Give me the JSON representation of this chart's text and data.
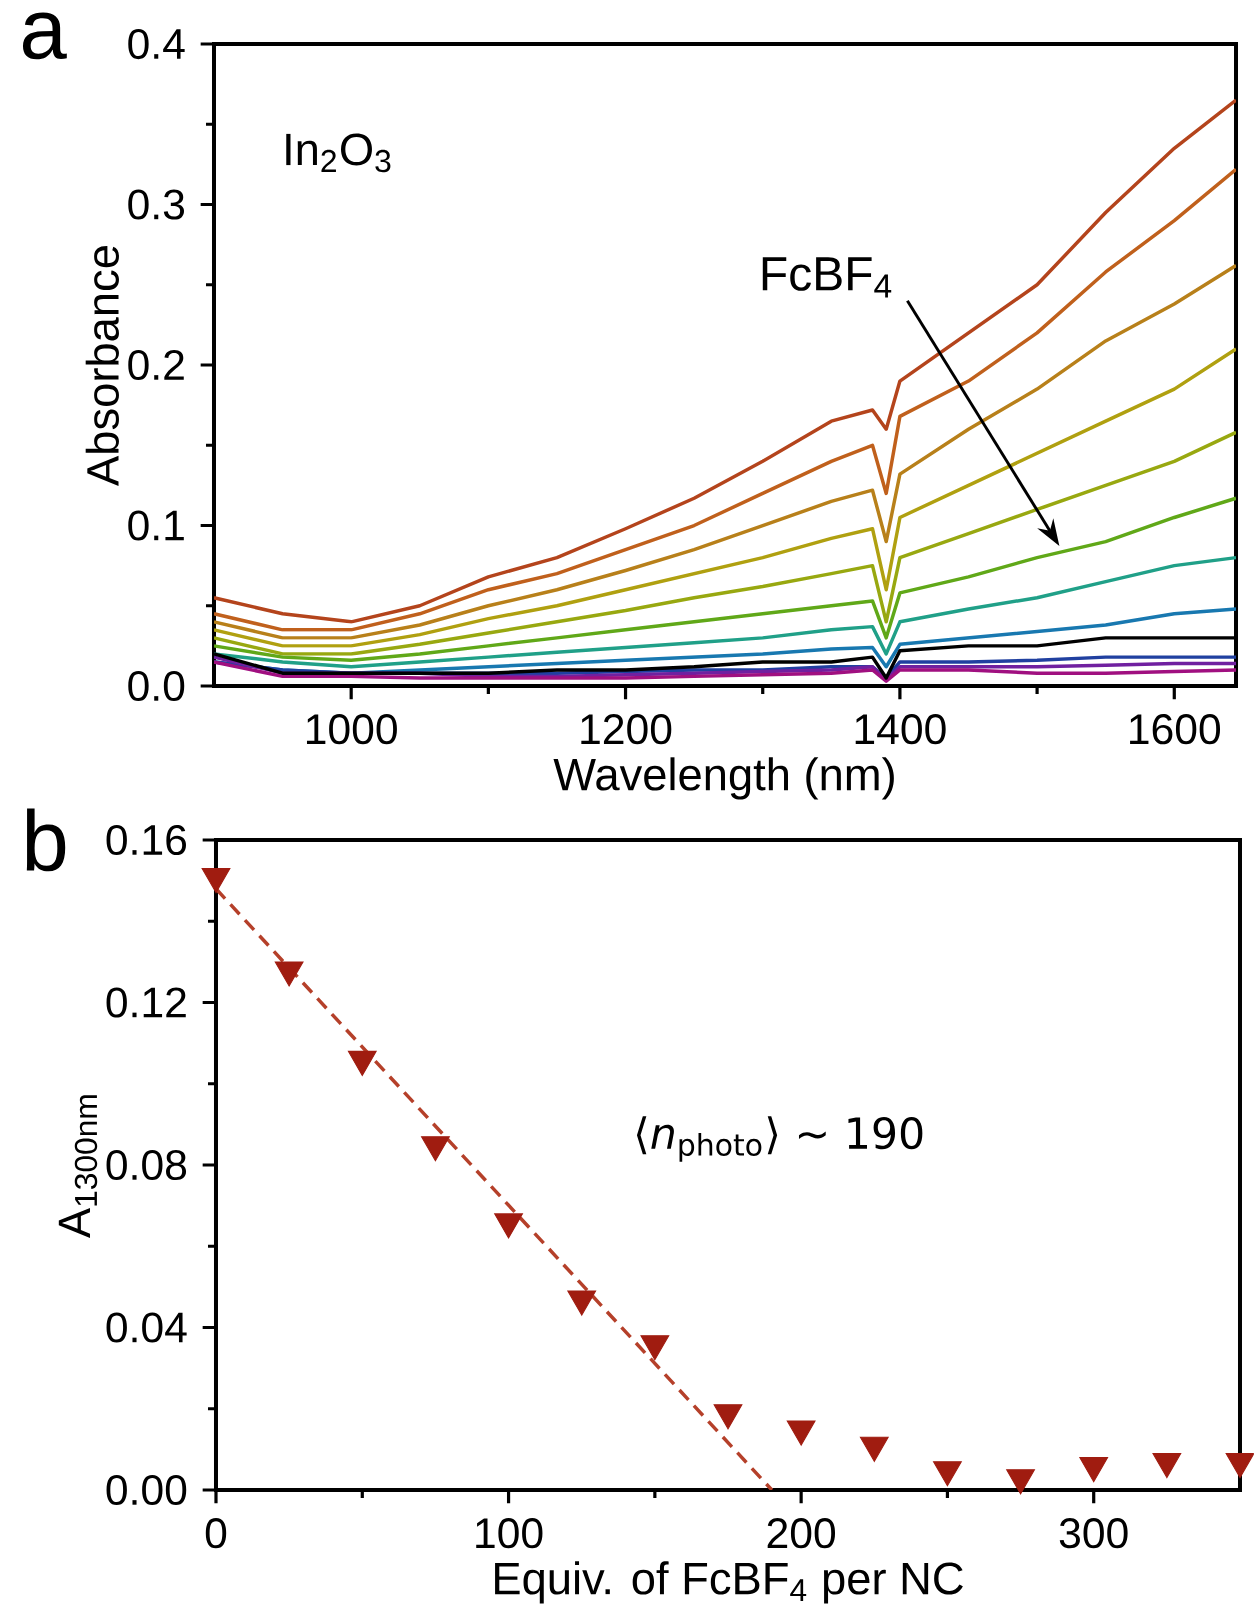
{
  "chart_data": [
    {
      "type": "line",
      "xlabel": "Wavelength (nm)",
      "ylabel": "Absorbance",
      "xlim": [
        900,
        1645
      ],
      "ylim": [
        0,
        0.4
      ],
      "xticks": [
        1000,
        1200,
        1400,
        1600
      ],
      "yticks": [
        {
          "value": 0,
          "label": "0.0"
        },
        {
          "value": 0.1,
          "label": "0.1"
        },
        {
          "value": 0.2,
          "label": "0.2"
        },
        {
          "value": 0.3,
          "label": "0.3"
        },
        {
          "value": 0.4,
          "label": "0.4"
        }
      ],
      "x": [
        900,
        950,
        1000,
        1050,
        1100,
        1150,
        1200,
        1250,
        1300,
        1350,
        1380,
        1390,
        1400,
        1450,
        1500,
        1550,
        1600,
        1645
      ],
      "series": [
        {
          "color": "#b4441c",
          "values": [
            0.055,
            0.045,
            0.04,
            0.05,
            0.068,
            0.08,
            0.098,
            0.117,
            0.14,
            0.165,
            0.172,
            0.16,
            0.19,
            0.22,
            0.25,
            0.295,
            0.335,
            0.365
          ]
        },
        {
          "color": "#c0601c",
          "values": [
            0.045,
            0.035,
            0.035,
            0.045,
            0.06,
            0.07,
            0.085,
            0.1,
            0.12,
            0.14,
            0.15,
            0.12,
            0.168,
            0.19,
            0.22,
            0.258,
            0.29,
            0.322
          ]
        },
        {
          "color": "#b8801a",
          "values": [
            0.04,
            0.03,
            0.03,
            0.038,
            0.05,
            0.06,
            0.072,
            0.085,
            0.1,
            0.115,
            0.122,
            0.09,
            0.132,
            0.16,
            0.185,
            0.215,
            0.238,
            0.262
          ]
        },
        {
          "color": "#b0a010",
          "values": [
            0.035,
            0.025,
            0.025,
            0.032,
            0.042,
            0.05,
            0.06,
            0.07,
            0.08,
            0.092,
            0.098,
            0.06,
            0.105,
            0.125,
            0.145,
            0.165,
            0.185,
            0.21
          ]
        },
        {
          "color": "#98a810",
          "values": [
            0.03,
            0.02,
            0.02,
            0.026,
            0.033,
            0.04,
            0.047,
            0.055,
            0.062,
            0.07,
            0.075,
            0.04,
            0.08,
            0.095,
            0.11,
            0.125,
            0.14,
            0.158
          ]
        },
        {
          "color": "#60a818",
          "values": [
            0.025,
            0.018,
            0.016,
            0.02,
            0.025,
            0.03,
            0.035,
            0.04,
            0.045,
            0.05,
            0.053,
            0.03,
            0.058,
            0.068,
            0.08,
            0.09,
            0.105,
            0.117
          ]
        },
        {
          "color": "#20a088",
          "values": [
            0.02,
            0.015,
            0.012,
            0.015,
            0.018,
            0.021,
            0.024,
            0.027,
            0.03,
            0.035,
            0.037,
            0.02,
            0.04,
            0.048,
            0.055,
            0.065,
            0.075,
            0.08
          ]
        },
        {
          "color": "#1878b0",
          "values": [
            0.015,
            0.01,
            0.008,
            0.01,
            0.012,
            0.014,
            0.016,
            0.018,
            0.02,
            0.023,
            0.024,
            0.012,
            0.026,
            0.03,
            0.034,
            0.038,
            0.045,
            0.048
          ]
        },
        {
          "color": "#2040a0",
          "values": [
            0.015,
            0.01,
            0.008,
            0.008,
            0.008,
            0.008,
            0.009,
            0.01,
            0.01,
            0.012,
            0.012,
            0.005,
            0.015,
            0.015,
            0.016,
            0.018,
            0.018,
            0.018
          ]
        },
        {
          "color": "#7020a0",
          "values": [
            0.018,
            0.008,
            0.008,
            0.008,
            0.006,
            0.006,
            0.007,
            0.008,
            0.009,
            0.01,
            0.012,
            0.004,
            0.012,
            0.012,
            0.012,
            0.013,
            0.014,
            0.014
          ]
        },
        {
          "color": "#a01080",
          "values": [
            0.015,
            0.006,
            0.006,
            0.005,
            0.005,
            0.005,
            0.005,
            0.006,
            0.007,
            0.008,
            0.01,
            0.003,
            0.01,
            0.01,
            0.008,
            0.008,
            0.009,
            0.01
          ]
        },
        {
          "color": "#000000",
          "values": [
            0.02,
            0.008,
            0.008,
            0.008,
            0.008,
            0.01,
            0.01,
            0.012,
            0.015,
            0.015,
            0.018,
            0.005,
            0.022,
            0.025,
            0.025,
            0.03,
            0.03,
            0.03
          ]
        }
      ],
      "annotations": [
        "a",
        "In$_{2}$O$_{3}$",
        "FcBF$_{4}$"
      ]
    },
    {
      "type": "scatter",
      "xlabel": "Equiv. of FcBF$_{4}$ per NC",
      "ylabel": "A$_{1300nm}$",
      "xlim": [
        0,
        350
      ],
      "ylim": [
        0,
        0.16
      ],
      "xticks": [
        0,
        100,
        200,
        300
      ],
      "yticks": [
        {
          "value": 0,
          "label": "0.00"
        },
        {
          "value": 0.04,
          "label": "0.04"
        },
        {
          "value": 0.08,
          "label": "0.08"
        },
        {
          "value": 0.12,
          "label": "0.12"
        },
        {
          "value": 0.16,
          "label": "0.16"
        }
      ],
      "series": [
        {
          "type": "line",
          "line_style": "dashed",
          "color": "#b5402a",
          "x": [
            0,
            190
          ],
          "values": [
            0.148,
            0
          ]
        },
        {
          "color": "#a01c10",
          "marker": "triangle",
          "x": [
            0,
            25,
            50,
            75,
            100,
            125,
            150,
            175,
            200,
            225,
            250,
            275,
            300,
            325,
            350
          ],
          "values": [
            0.151,
            0.128,
            0.106,
            0.085,
            0.066,
            0.047,
            0.036,
            0.019,
            0.015,
            0.011,
            0.005,
            0.003,
            0.006,
            0.007,
            0.007
          ]
        }
      ],
      "annotations": [
        "b",
        "⟨*n*$_{photo}$⟩ ~ 190"
      ]
    }
  ]
}
